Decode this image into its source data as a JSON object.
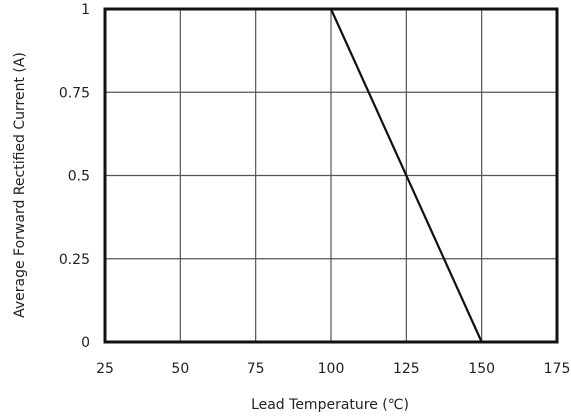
{
  "chart_data": {
    "type": "line",
    "x": [
      25,
      100,
      150
    ],
    "series": [
      {
        "values": [
          1,
          1,
          0
        ]
      }
    ],
    "xticks": [
      25,
      50,
      75,
      100,
      125,
      150,
      175
    ],
    "yticks": [
      0,
      0.25,
      0.5,
      0.75,
      1
    ],
    "xlim": [
      25,
      175
    ],
    "ylim": [
      0,
      1
    ],
    "xlabel": "Lead Temperature (℃)",
    "ylabel": "Average Forward Rectified Current (A)",
    "grid": true
  }
}
